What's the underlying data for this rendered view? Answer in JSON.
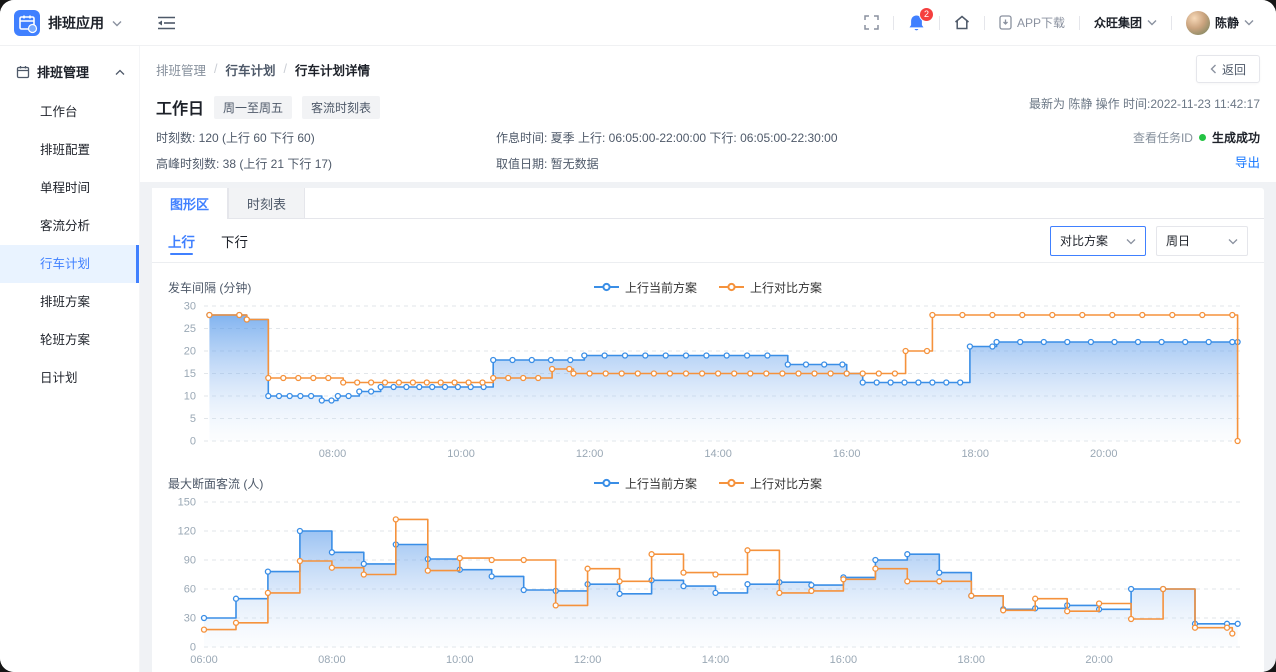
{
  "topbar": {
    "app_name": "排班应用",
    "notification_count": "2",
    "app_download_label": "APP下载",
    "org_name": "众旺集团",
    "user_name": "陈静"
  },
  "sidebar": {
    "group_label": "排班管理",
    "items": [
      {
        "label": "工作台"
      },
      {
        "label": "排班配置"
      },
      {
        "label": "单程时间"
      },
      {
        "label": "客流分析"
      },
      {
        "label": "行车计划"
      },
      {
        "label": "排班方案"
      },
      {
        "label": "轮班方案"
      },
      {
        "label": "日计划"
      }
    ]
  },
  "breadcrumb": {
    "items": [
      "排班管理",
      "行车计划",
      "行车计划详情"
    ]
  },
  "page": {
    "back_label": "返回",
    "title": "工作日",
    "tags": [
      "周一至周五",
      "客流时刻表"
    ],
    "info": {
      "row1_left": "时刻数: 120 (上行 60 下行 60)",
      "row1_mid": "作息时间: 夏季 上行: 06:05:00-22:00:00 下行: 06:05:00-22:30:00",
      "row2_left": "高峰时刻数: 38 (上行 21 下行 17)",
      "row2_mid": "取值日期: 暂无数据"
    },
    "meta": {
      "latest": "最新为 陈静 操作 时间:2022-11-23 11:42:17",
      "task_link": "查看任务ID",
      "status": "生成成功",
      "export_label": "导出"
    }
  },
  "tabs": [
    {
      "label": "图形区",
      "active": true
    },
    {
      "label": "时刻表",
      "active": false
    }
  ],
  "direction_tabs": [
    {
      "label": "上行",
      "active": true
    },
    {
      "label": "下行",
      "active": false
    }
  ],
  "selects": [
    {
      "value": "对比方案"
    },
    {
      "value": "周日"
    }
  ],
  "colors": {
    "accent": "#4080ff",
    "series_current": "#3a8ee6",
    "series_compare": "#f5923c",
    "status_green": "#23c343",
    "badge_red": "#f53f3f"
  },
  "chart_data": [
    {
      "type": "line",
      "subtype": "step-after",
      "title": "发车间隔 (分钟)",
      "legend": [
        "上行当前方案",
        "上行对比方案"
      ],
      "ylabel": "分钟",
      "y_ticks": [
        0,
        5,
        10,
        15,
        20,
        25,
        30
      ],
      "x_start": "06:00",
      "x_end": "22:10",
      "x_labels": [
        "08:00",
        "10:00",
        "12:00",
        "14:00",
        "16:00",
        "18:00",
        "20:00"
      ],
      "grid": "dashed",
      "legend_position": "top-center",
      "marker_mode": "headway",
      "series": [
        {
          "name": "上行当前方案",
          "color": "#3a8ee6",
          "fill": true,
          "steps": [
            [
              "06:05",
              28
            ],
            [
              "06:40",
              27
            ],
            [
              "07:00",
              10
            ],
            [
              "07:50",
              9
            ],
            [
              "08:05",
              10
            ],
            [
              "08:25",
              11
            ],
            [
              "08:45",
              12
            ],
            [
              "10:30",
              18
            ],
            [
              "11:55",
              19
            ],
            [
              "15:05",
              17
            ],
            [
              "16:00",
              15
            ],
            [
              "16:15",
              13
            ],
            [
              "17:55",
              21
            ],
            [
              "18:20",
              22
            ],
            [
              "22:05",
              22
            ]
          ]
        },
        {
          "name": "上行对比方案",
          "color": "#f5923c",
          "fill": false,
          "steps": [
            [
              "06:05",
              28
            ],
            [
              "06:40",
              27
            ],
            [
              "07:00",
              14
            ],
            [
              "08:10",
              13
            ],
            [
              "10:30",
              14
            ],
            [
              "11:25",
              16
            ],
            [
              "11:45",
              15
            ],
            [
              "16:55",
              20
            ],
            [
              "17:20",
              28
            ],
            [
              "22:05",
              0
            ]
          ]
        }
      ]
    },
    {
      "type": "line",
      "subtype": "step-after",
      "title": "最大断面客流 (人)",
      "legend": [
        "上行当前方案",
        "上行对比方案"
      ],
      "ylabel": "人",
      "y_ticks": [
        0,
        30,
        60,
        90,
        120,
        150
      ],
      "x_start": "06:00",
      "x_end": "22:15",
      "x_labels": [
        "06:00",
        "08:00",
        "10:00",
        "12:00",
        "14:00",
        "16:00",
        "18:00",
        "20:00"
      ],
      "grid": "dashed",
      "legend_position": "top-center",
      "marker_mode": "fixed30",
      "series": [
        {
          "name": "上行当前方案",
          "color": "#3a8ee6",
          "fill": true,
          "steps": [
            [
              "06:00",
              30
            ],
            [
              "06:30",
              50
            ],
            [
              "07:00",
              78
            ],
            [
              "07:30",
              120
            ],
            [
              "08:00",
              98
            ],
            [
              "08:30",
              86
            ],
            [
              "09:00",
              106
            ],
            [
              "09:30",
              91
            ],
            [
              "10:00",
              80
            ],
            [
              "10:30",
              73
            ],
            [
              "11:00",
              59
            ],
            [
              "11:30",
              58
            ],
            [
              "12:00",
              65
            ],
            [
              "12:30",
              55
            ],
            [
              "13:00",
              69
            ],
            [
              "13:30",
              63
            ],
            [
              "14:00",
              56
            ],
            [
              "14:30",
              65
            ],
            [
              "15:00",
              67
            ],
            [
              "15:30",
              64
            ],
            [
              "16:00",
              72
            ],
            [
              "16:30",
              90
            ],
            [
              "17:00",
              96
            ],
            [
              "17:30",
              77
            ],
            [
              "18:00",
              53
            ],
            [
              "18:30",
              39
            ],
            [
              "19:00",
              40
            ],
            [
              "19:30",
              43
            ],
            [
              "20:00",
              39
            ],
            [
              "20:30",
              60
            ],
            [
              "21:00",
              60
            ],
            [
              "21:30",
              24
            ],
            [
              "22:10",
              24
            ]
          ]
        },
        {
          "name": "上行对比方案",
          "color": "#f5923c",
          "fill": false,
          "steps": [
            [
              "06:00",
              18
            ],
            [
              "06:30",
              25
            ],
            [
              "07:00",
              56
            ],
            [
              "07:30",
              89
            ],
            [
              "08:00",
              82
            ],
            [
              "08:30",
              75
            ],
            [
              "09:00",
              132
            ],
            [
              "09:30",
              79
            ],
            [
              "10:00",
              92
            ],
            [
              "10:30",
              90
            ],
            [
              "11:00",
              90
            ],
            [
              "11:30",
              43
            ],
            [
              "12:00",
              81
            ],
            [
              "12:30",
              68
            ],
            [
              "13:00",
              96
            ],
            [
              "13:30",
              77
            ],
            [
              "14:00",
              75
            ],
            [
              "14:30",
              100
            ],
            [
              "15:00",
              56
            ],
            [
              "15:30",
              58
            ],
            [
              "16:00",
              70
            ],
            [
              "16:30",
              81
            ],
            [
              "17:00",
              68
            ],
            [
              "17:30",
              68
            ],
            [
              "18:00",
              53
            ],
            [
              "18:30",
              38
            ],
            [
              "19:00",
              50
            ],
            [
              "19:30",
              37
            ],
            [
              "20:00",
              45
            ],
            [
              "20:30",
              29
            ],
            [
              "21:00",
              60
            ],
            [
              "21:30",
              20
            ],
            [
              "22:05",
              14
            ]
          ]
        }
      ]
    }
  ]
}
